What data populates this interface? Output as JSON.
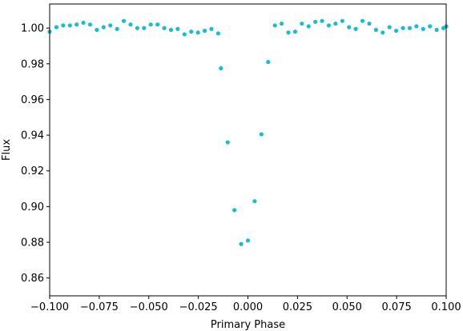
{
  "chart_data": {
    "type": "scatter",
    "title": "",
    "xlabel": "Primary Phase",
    "ylabel": "Flux",
    "xlim": [
      -0.1,
      0.1
    ],
    "ylim": [
      0.85,
      1.0135
    ],
    "grid": false,
    "marker_color": "#17becf",
    "xticks": [
      -0.1,
      -0.075,
      -0.05,
      -0.025,
      0.0,
      0.025,
      0.05,
      0.075,
      0.1
    ],
    "xtick_labels": [
      "−0.100",
      "−0.075",
      "−0.050",
      "−0.025",
      "0.000",
      "0.025",
      "0.050",
      "0.075",
      "0.100"
    ],
    "yticks": [
      0.86,
      0.88,
      0.9,
      0.92,
      0.94,
      0.96,
      0.98,
      1.0
    ],
    "ytick_labels": [
      "0.86",
      "0.88",
      "0.90",
      "0.92",
      "0.94",
      "0.96",
      "0.98",
      "1.00"
    ],
    "points": {
      "x": [
        -0.1,
        -0.0966,
        -0.0932,
        -0.0898,
        -0.0864,
        -0.083,
        -0.0796,
        -0.0762,
        -0.0728,
        -0.0694,
        -0.066,
        -0.0626,
        -0.0592,
        -0.0558,
        -0.0524,
        -0.049,
        -0.0456,
        -0.0422,
        -0.0388,
        -0.0354,
        -0.032,
        -0.0286,
        -0.0252,
        -0.0218,
        -0.0184,
        -0.015,
        -0.0136,
        -0.0102,
        -0.0068,
        -0.0034,
        0.0,
        0.0034,
        0.0068,
        0.0102,
        0.0136,
        0.017,
        0.0204,
        0.0238,
        0.0272,
        0.0306,
        0.034,
        0.0374,
        0.0408,
        0.0442,
        0.0476,
        0.051,
        0.0544,
        0.0578,
        0.0612,
        0.0646,
        0.068,
        0.0714,
        0.0748,
        0.0782,
        0.0816,
        0.085,
        0.0884,
        0.0918,
        0.0952,
        0.0986,
        0.1
      ],
      "y": [
        0.998,
        1.0005,
        1.0015,
        1.0015,
        1.002,
        1.003,
        1.002,
        0.999,
        1.0005,
        1.0015,
        0.9995,
        1.004,
        1.002,
        1.0,
        1.0,
        1.002,
        1.002,
        1.0,
        0.999,
        0.9995,
        0.9965,
        0.998,
        0.9975,
        0.9985,
        0.9995,
        0.997,
        0.9775,
        0.936,
        0.898,
        0.879,
        0.881,
        0.903,
        0.9405,
        0.981,
        1.0015,
        1.0025,
        0.9975,
        0.998,
        1.0025,
        1.001,
        1.0035,
        1.004,
        1.0015,
        1.0025,
        1.004,
        1.0005,
        0.9995,
        1.004,
        1.0025,
        0.999,
        0.9975,
        1.0005,
        0.9985,
        1.0,
        1.0,
        1.001,
        0.9995,
        1.001,
        0.999,
        1.0,
        1.001
      ]
    }
  }
}
